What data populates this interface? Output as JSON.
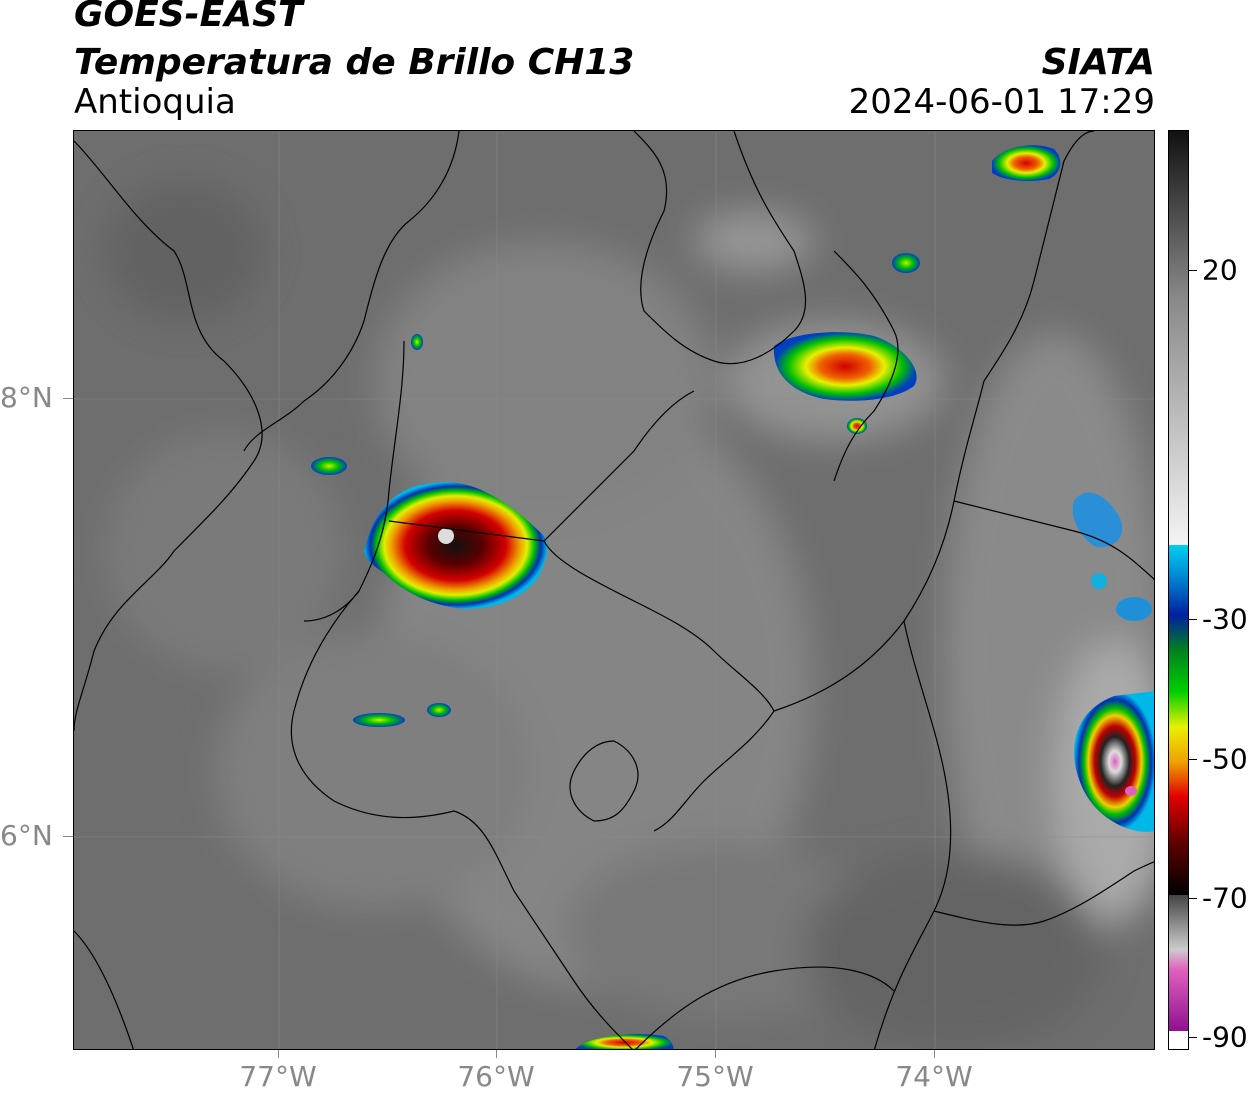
{
  "header": {
    "satellite": "GOES-EAST",
    "product": "Temperatura de Brillo CH13",
    "region": "Antioquia",
    "agency": "SIATA",
    "datetime": "2024-06-01 17:29"
  },
  "map": {
    "lat_labels": [
      "8°N",
      "6°N"
    ],
    "lon_labels": [
      "77°W",
      "76°W",
      "75°W",
      "74°W"
    ],
    "background": "#6e6e6e"
  },
  "colorbar": {
    "ticks": [
      "20",
      "-30",
      "-50",
      "-70",
      "-90"
    ],
    "colors": {
      "cyan": "#00c8f0",
      "blue": "#0020a0",
      "green": "#00c000",
      "yellow": "#f0f000",
      "red": "#e00000",
      "darkred": "#600000",
      "magenta": "#e060c0",
      "purple": "#901090"
    }
  }
}
